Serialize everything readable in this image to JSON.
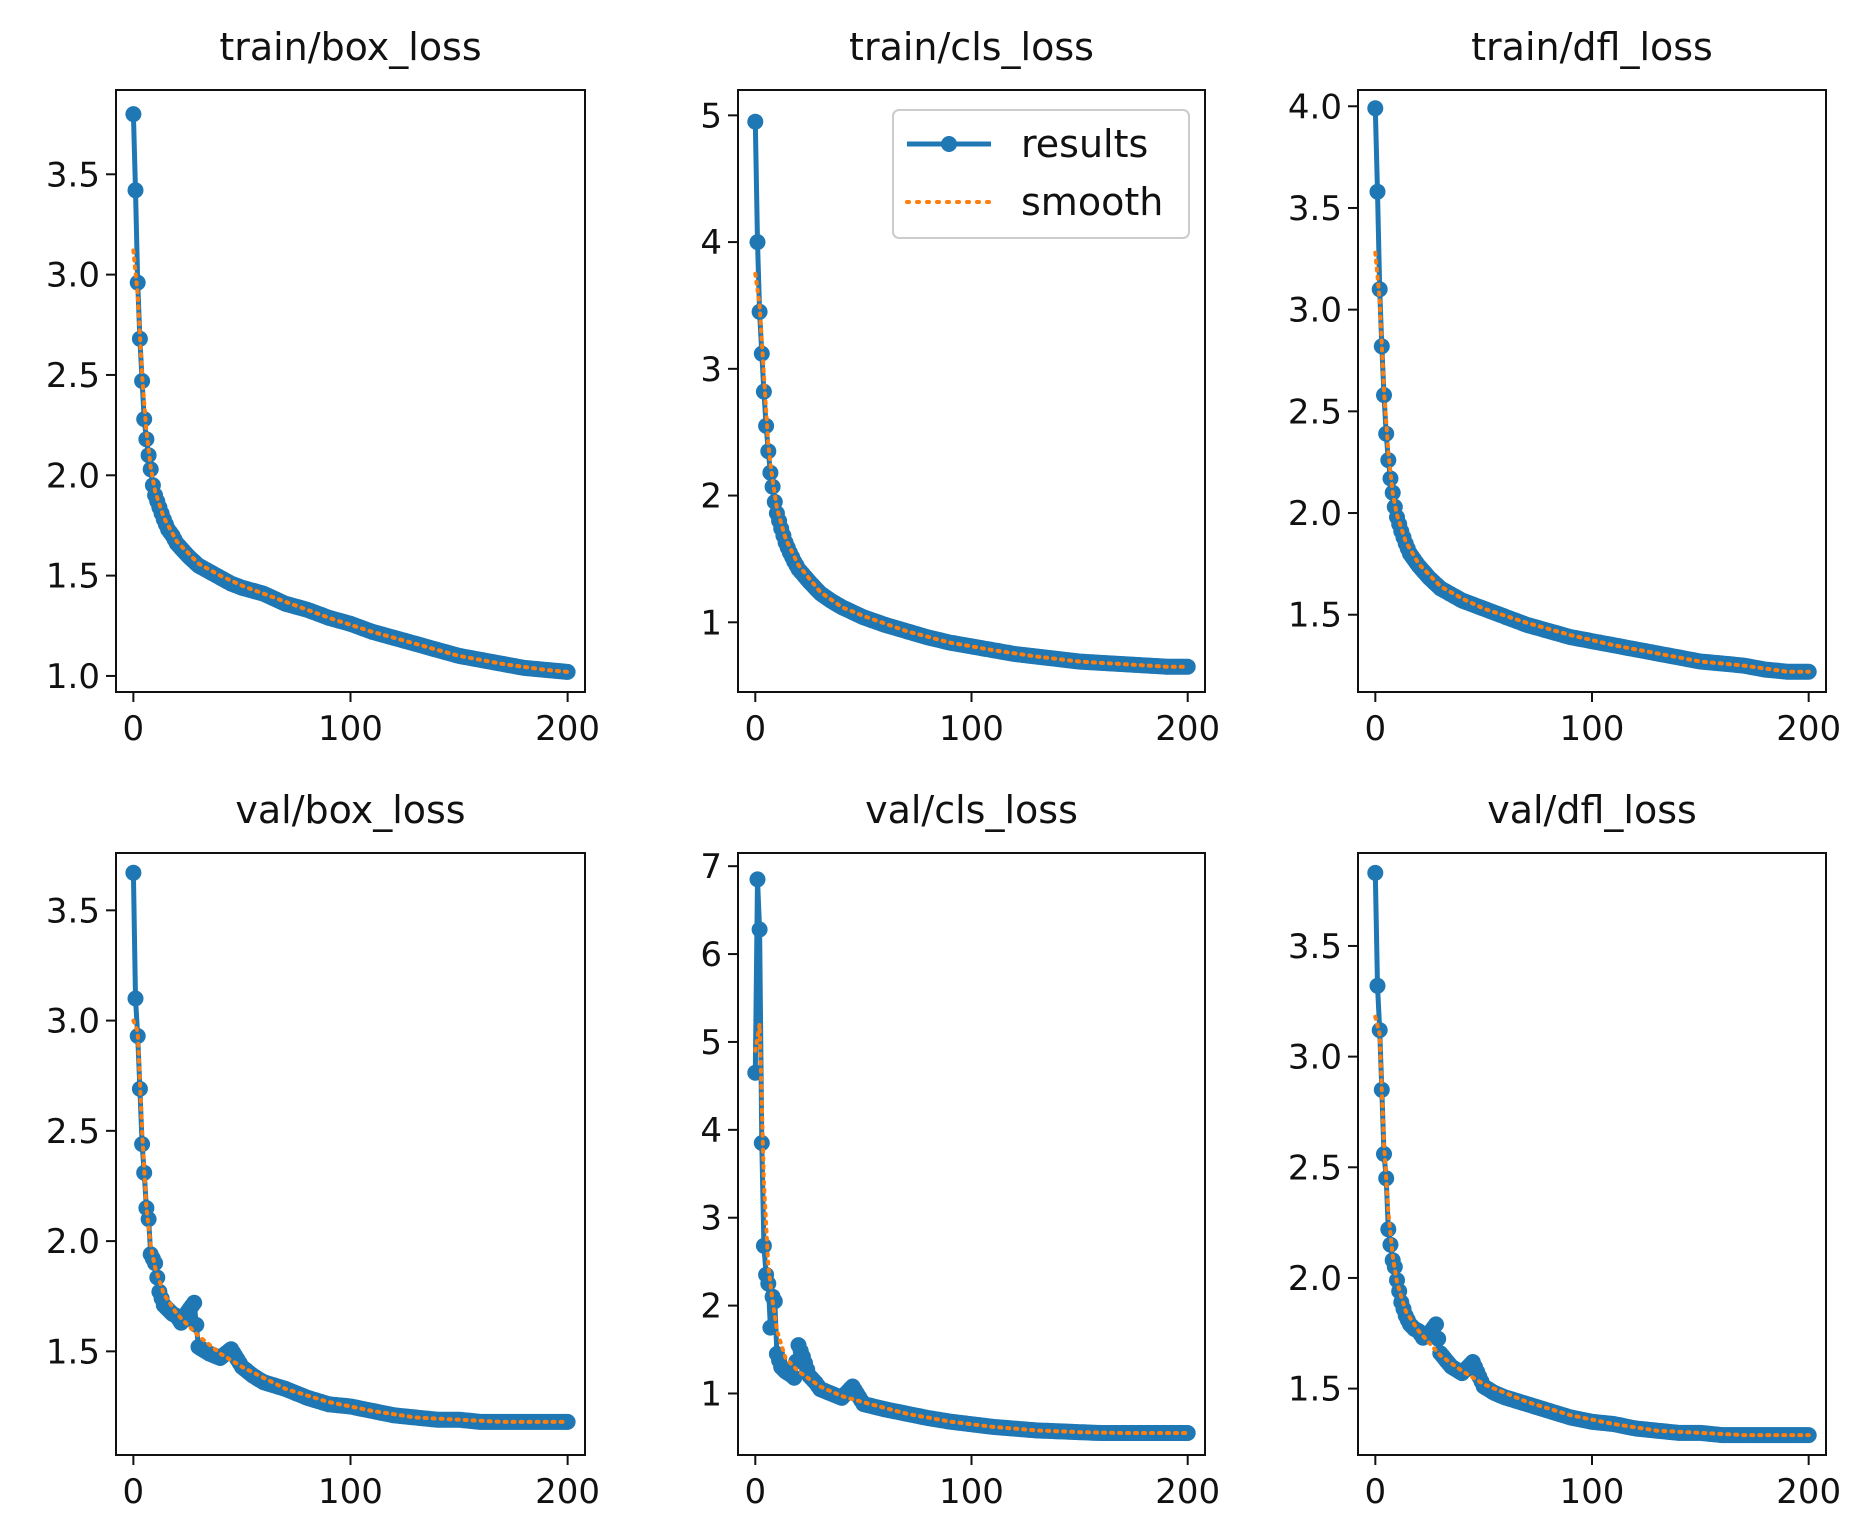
{
  "chart_data": [
    {
      "type": "line",
      "title": "train/box_loss",
      "xlim": [
        -8,
        208
      ],
      "ylim": [
        0.92,
        3.92
      ],
      "xticks": [
        0,
        100,
        200
      ],
      "yticks": [
        1.0,
        1.5,
        2.0,
        2.5,
        3.0,
        3.5
      ],
      "xtick_labels": [
        "0",
        "100",
        "200"
      ],
      "ytick_labels": [
        "1.0",
        "1.5",
        "2.0",
        "2.5",
        "3.0",
        "3.5"
      ],
      "x_max": 200,
      "series": [
        {
          "name": "results",
          "x": [
            0,
            1,
            2,
            3,
            4,
            5,
            6,
            7,
            8,
            9,
            10,
            12,
            14,
            16,
            18,
            20,
            25,
            30,
            35,
            40,
            45,
            50,
            60,
            70,
            80,
            90,
            100,
            110,
            120,
            130,
            140,
            150,
            160,
            170,
            180,
            190,
            200
          ],
          "values": [
            3.8,
            3.42,
            2.96,
            2.68,
            2.47,
            2.28,
            2.18,
            2.1,
            2.03,
            1.95,
            1.9,
            1.84,
            1.78,
            1.73,
            1.7,
            1.66,
            1.6,
            1.55,
            1.52,
            1.49,
            1.46,
            1.44,
            1.41,
            1.36,
            1.33,
            1.29,
            1.26,
            1.22,
            1.19,
            1.16,
            1.13,
            1.1,
            1.08,
            1.06,
            1.04,
            1.03,
            1.02
          ]
        },
        {
          "name": "smooth",
          "x": [
            0,
            2,
            4,
            6,
            8,
            10,
            14,
            20,
            30,
            40,
            50,
            70,
            90,
            110,
            130,
            150,
            170,
            190,
            200
          ],
          "values": [
            3.12,
            2.9,
            2.5,
            2.22,
            2.04,
            1.92,
            1.79,
            1.67,
            1.56,
            1.5,
            1.45,
            1.37,
            1.29,
            1.22,
            1.16,
            1.1,
            1.06,
            1.03,
            1.02
          ]
        }
      ]
    },
    {
      "type": "line",
      "title": "train/cls_loss",
      "xlim": [
        -8,
        208
      ],
      "ylim": [
        0.45,
        5.2
      ],
      "xticks": [
        0,
        100,
        200
      ],
      "yticks": [
        1,
        2,
        3,
        4,
        5
      ],
      "xtick_labels": [
        "0",
        "100",
        "200"
      ],
      "ytick_labels": [
        "1",
        "2",
        "3",
        "4",
        "5"
      ],
      "x_max": 200,
      "legend": {
        "position": "top-right",
        "entries": [
          "results",
          "smooth"
        ]
      },
      "series": [
        {
          "name": "results",
          "x": [
            0,
            1,
            2,
            3,
            4,
            5,
            6,
            7,
            8,
            9,
            10,
            12,
            14,
            16,
            18,
            20,
            25,
            30,
            35,
            40,
            45,
            50,
            60,
            70,
            80,
            90,
            100,
            110,
            120,
            130,
            140,
            150,
            160,
            170,
            180,
            190,
            200
          ],
          "values": [
            4.95,
            4.0,
            3.45,
            3.12,
            2.82,
            2.55,
            2.35,
            2.18,
            2.07,
            1.95,
            1.86,
            1.74,
            1.63,
            1.55,
            1.48,
            1.42,
            1.32,
            1.23,
            1.17,
            1.12,
            1.08,
            1.04,
            0.98,
            0.93,
            0.88,
            0.84,
            0.81,
            0.78,
            0.75,
            0.73,
            0.71,
            0.69,
            0.68,
            0.67,
            0.66,
            0.65,
            0.65
          ]
        },
        {
          "name": "smooth",
          "x": [
            0,
            2,
            4,
            6,
            8,
            10,
            14,
            20,
            30,
            40,
            50,
            70,
            90,
            110,
            130,
            150,
            170,
            190,
            200
          ],
          "values": [
            3.75,
            3.5,
            2.95,
            2.4,
            2.12,
            1.9,
            1.66,
            1.45,
            1.24,
            1.12,
            1.05,
            0.93,
            0.84,
            0.78,
            0.73,
            0.69,
            0.67,
            0.65,
            0.65
          ]
        }
      ]
    },
    {
      "type": "line",
      "title": "train/dfl_loss",
      "xlim": [
        -8,
        208
      ],
      "ylim": [
        1.12,
        4.08
      ],
      "xticks": [
        0,
        100,
        200
      ],
      "yticks": [
        1.5,
        2.0,
        2.5,
        3.0,
        3.5,
        4.0
      ],
      "xtick_labels": [
        "0",
        "100",
        "200"
      ],
      "ytick_labels": [
        "1.5",
        "2.0",
        "2.5",
        "3.0",
        "3.5",
        "4.0"
      ],
      "x_max": 200,
      "series": [
        {
          "name": "results",
          "x": [
            0,
            1,
            2,
            3,
            4,
            5,
            6,
            7,
            8,
            9,
            10,
            12,
            14,
            16,
            18,
            20,
            25,
            30,
            35,
            40,
            45,
            50,
            60,
            70,
            80,
            90,
            100,
            110,
            120,
            130,
            140,
            150,
            160,
            170,
            180,
            190,
            200
          ],
          "values": [
            3.99,
            3.58,
            3.1,
            2.82,
            2.58,
            2.39,
            2.26,
            2.17,
            2.1,
            2.03,
            1.98,
            1.91,
            1.85,
            1.8,
            1.77,
            1.74,
            1.68,
            1.63,
            1.6,
            1.57,
            1.55,
            1.53,
            1.49,
            1.45,
            1.42,
            1.39,
            1.37,
            1.35,
            1.33,
            1.31,
            1.29,
            1.27,
            1.26,
            1.25,
            1.23,
            1.22,
            1.22
          ]
        },
        {
          "name": "smooth",
          "x": [
            0,
            2,
            4,
            6,
            8,
            10,
            14,
            20,
            30,
            40,
            50,
            70,
            90,
            110,
            130,
            150,
            170,
            190,
            200
          ],
          "values": [
            3.28,
            3.05,
            2.6,
            2.3,
            2.1,
            1.99,
            1.86,
            1.75,
            1.64,
            1.58,
            1.53,
            1.46,
            1.4,
            1.35,
            1.31,
            1.27,
            1.25,
            1.22,
            1.22
          ]
        }
      ]
    },
    {
      "type": "line",
      "title": "val/box_loss",
      "xlim": [
        -8,
        208
      ],
      "ylim": [
        1.03,
        3.76
      ],
      "xticks": [
        0,
        100,
        200
      ],
      "yticks": [
        1.5,
        2.0,
        2.5,
        3.0,
        3.5
      ],
      "xtick_labels": [
        "0",
        "100",
        "200"
      ],
      "ytick_labels": [
        "1.5",
        "2.0",
        "2.5",
        "3.0",
        "3.5"
      ],
      "x_max": 200,
      "series": [
        {
          "name": "results",
          "x": [
            0,
            1,
            2,
            3,
            4,
            5,
            6,
            7,
            8,
            9,
            10,
            12,
            14,
            16,
            18,
            20,
            22,
            25,
            28,
            30,
            35,
            40,
            45,
            50,
            55,
            60,
            70,
            80,
            90,
            100,
            110,
            120,
            130,
            140,
            150,
            160,
            170,
            180,
            190,
            200
          ],
          "values": [
            3.67,
            3.1,
            2.93,
            2.69,
            2.44,
            2.31,
            2.15,
            2.1,
            1.94,
            1.92,
            1.9,
            1.77,
            1.71,
            1.69,
            1.67,
            1.66,
            1.63,
            1.68,
            1.72,
            1.52,
            1.49,
            1.47,
            1.51,
            1.43,
            1.39,
            1.36,
            1.33,
            1.29,
            1.26,
            1.25,
            1.23,
            1.21,
            1.2,
            1.19,
            1.19,
            1.18,
            1.18,
            1.18,
            1.18,
            1.18
          ]
        },
        {
          "name": "smooth",
          "x": [
            0,
            2,
            4,
            6,
            8,
            10,
            14,
            20,
            30,
            40,
            50,
            70,
            90,
            110,
            130,
            150,
            170,
            190,
            200
          ],
          "values": [
            3.0,
            2.95,
            2.5,
            2.15,
            1.98,
            1.88,
            1.76,
            1.67,
            1.57,
            1.49,
            1.43,
            1.33,
            1.27,
            1.23,
            1.2,
            1.19,
            1.18,
            1.18,
            1.18
          ]
        }
      ]
    },
    {
      "type": "line",
      "title": "val/cls_loss",
      "xlim": [
        -8,
        208
      ],
      "ylim": [
        0.3,
        7.15
      ],
      "xticks": [
        0,
        100,
        200
      ],
      "yticks": [
        1,
        2,
        3,
        4,
        5,
        6,
        7
      ],
      "xtick_labels": [
        "0",
        "100",
        "200"
      ],
      "ytick_labels": [
        "1",
        "2",
        "3",
        "4",
        "5",
        "6",
        "7"
      ],
      "x_max": 200,
      "series": [
        {
          "name": "results",
          "x": [
            0,
            1,
            2,
            3,
            4,
            5,
            6,
            7,
            8,
            9,
            10,
            12,
            14,
            16,
            18,
            20,
            22,
            25,
            28,
            30,
            35,
            40,
            45,
            50,
            55,
            60,
            70,
            80,
            90,
            100,
            110,
            120,
            130,
            140,
            150,
            160,
            170,
            180,
            190,
            200
          ],
          "values": [
            4.65,
            6.85,
            6.28,
            3.85,
            2.68,
            2.35,
            2.25,
            1.75,
            2.1,
            2.05,
            1.45,
            1.3,
            1.25,
            1.22,
            1.18,
            1.55,
            1.42,
            1.2,
            1.12,
            1.05,
            1.0,
            0.95,
            1.08,
            0.88,
            0.85,
            0.82,
            0.77,
            0.72,
            0.68,
            0.65,
            0.62,
            0.6,
            0.58,
            0.57,
            0.56,
            0.55,
            0.55,
            0.55,
            0.55,
            0.55
          ]
        },
        {
          "name": "smooth",
          "x": [
            0,
            2,
            4,
            6,
            8,
            10,
            14,
            20,
            30,
            40,
            50,
            70,
            90,
            110,
            130,
            150,
            170,
            190,
            200
          ],
          "values": [
            4.9,
            5.2,
            3.4,
            2.45,
            2.05,
            1.72,
            1.4,
            1.25,
            1.08,
            0.97,
            0.9,
            0.77,
            0.68,
            0.62,
            0.58,
            0.56,
            0.55,
            0.55,
            0.55
          ]
        }
      ]
    },
    {
      "type": "line",
      "title": "val/dfl_loss",
      "xlim": [
        -8,
        208
      ],
      "ylim": [
        1.2,
        3.92
      ],
      "xticks": [
        0,
        100,
        200
      ],
      "yticks": [
        1.5,
        2.0,
        2.5,
        3.0,
        3.5
      ],
      "xtick_labels": [
        "0",
        "100",
        "200"
      ],
      "ytick_labels": [
        "1.5",
        "2.0",
        "2.5",
        "3.0",
        "3.5"
      ],
      "x_max": 200,
      "series": [
        {
          "name": "results",
          "x": [
            0,
            1,
            2,
            3,
            4,
            5,
            6,
            7,
            8,
            9,
            10,
            12,
            14,
            16,
            18,
            20,
            22,
            25,
            28,
            30,
            35,
            40,
            45,
            50,
            55,
            60,
            70,
            80,
            90,
            100,
            110,
            120,
            130,
            140,
            150,
            160,
            170,
            180,
            190,
            200
          ],
          "values": [
            3.83,
            3.32,
            3.12,
            2.85,
            2.56,
            2.45,
            2.22,
            2.15,
            2.08,
            2.05,
            1.99,
            1.89,
            1.83,
            1.79,
            1.77,
            1.76,
            1.73,
            1.75,
            1.79,
            1.66,
            1.6,
            1.57,
            1.62,
            1.51,
            1.48,
            1.46,
            1.43,
            1.4,
            1.37,
            1.35,
            1.34,
            1.32,
            1.31,
            1.3,
            1.3,
            1.29,
            1.29,
            1.29,
            1.29,
            1.29
          ]
        },
        {
          "name": "smooth",
          "x": [
            0,
            2,
            4,
            6,
            8,
            10,
            14,
            20,
            30,
            40,
            50,
            70,
            90,
            110,
            130,
            150,
            170,
            190,
            200
          ],
          "values": [
            3.18,
            3.1,
            2.6,
            2.3,
            2.1,
            1.98,
            1.85,
            1.76,
            1.65,
            1.58,
            1.52,
            1.44,
            1.38,
            1.34,
            1.31,
            1.3,
            1.29,
            1.29,
            1.29
          ]
        }
      ]
    }
  ],
  "colors": {
    "results": "#1f77b4",
    "smooth": "#ff7f0e",
    "axes": "#111111",
    "legend_border": "#cccccc"
  }
}
